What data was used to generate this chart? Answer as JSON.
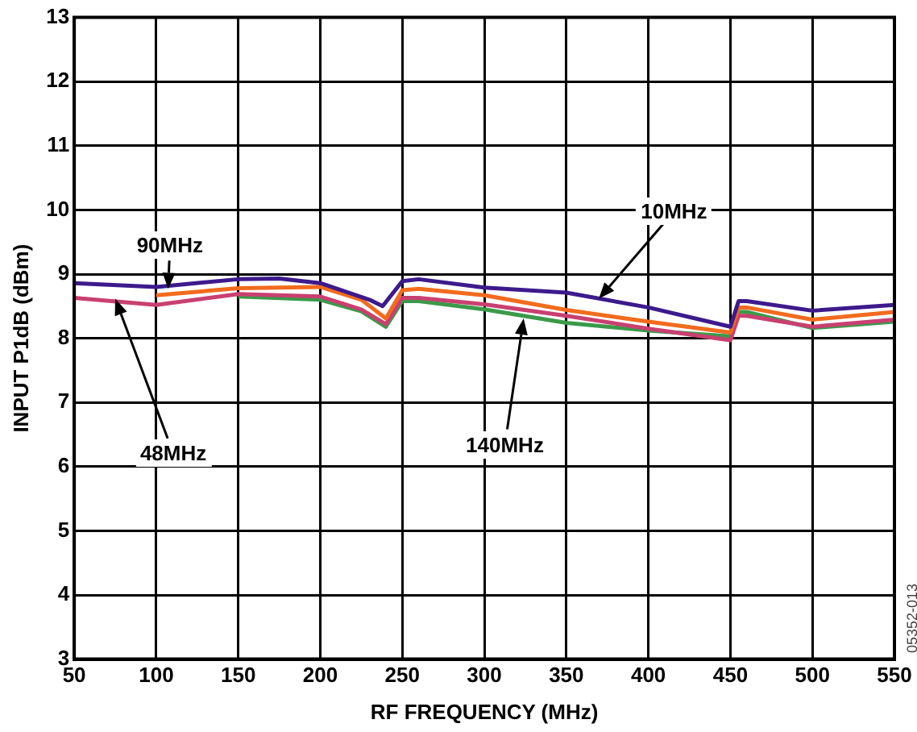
{
  "chart_data": {
    "type": "line",
    "xlabel": "RF FREQUENCY (MHz)",
    "ylabel": "INPUT P1dB (dBm)",
    "xlim": [
      50,
      550
    ],
    "xticks": [
      50,
      100,
      150,
      200,
      250,
      300,
      350,
      400,
      450,
      500,
      550
    ],
    "ylim": [
      3,
      13
    ],
    "yticks": [
      3,
      4,
      5,
      6,
      7,
      8,
      9,
      10,
      11,
      12,
      13
    ],
    "grid": true,
    "legend": false,
    "marker": "none",
    "line_style": "solid",
    "series": [
      {
        "color": "#3d1a8c",
        "x": [
          50,
          100,
          150,
          175,
          200,
          230,
          238,
          250,
          260,
          300,
          350,
          400,
          450,
          455,
          460,
          500,
          550
        ],
        "values": [
          8.86,
          8.8,
          8.92,
          8.93,
          8.86,
          8.6,
          8.5,
          8.89,
          8.92,
          8.79,
          8.71,
          8.48,
          8.18,
          8.58,
          8.58,
          8.43,
          8.52
        ]
      },
      {
        "color": "#f26b1d",
        "x": [
          100,
          150,
          200,
          225,
          240,
          250,
          260,
          300,
          350,
          400,
          450,
          455,
          460,
          500,
          550
        ],
        "values": [
          8.67,
          8.78,
          8.8,
          8.6,
          8.31,
          8.75,
          8.77,
          8.67,
          8.44,
          8.26,
          8.09,
          8.48,
          8.48,
          8.29,
          8.41
        ]
      },
      {
        "color": "#c94070",
        "x": [
          50,
          100,
          150,
          200,
          225,
          240,
          250,
          260,
          300,
          350,
          400,
          450,
          455,
          460,
          500,
          550
        ],
        "values": [
          8.63,
          8.52,
          8.69,
          8.65,
          8.45,
          8.22,
          8.63,
          8.63,
          8.53,
          8.35,
          8.15,
          7.97,
          8.35,
          8.35,
          8.18,
          8.29
        ]
      },
      {
        "color": "#3a9a4a",
        "x": [
          150,
          200,
          225,
          240,
          250,
          260,
          300,
          350,
          400,
          450,
          455,
          460,
          500,
          550
        ],
        "values": [
          8.65,
          8.6,
          8.42,
          8.18,
          8.58,
          8.58,
          8.45,
          8.24,
          8.12,
          8.03,
          8.41,
          8.41,
          8.16,
          8.26
        ]
      }
    ],
    "annotations": [
      "90MHz",
      "10MHz",
      "48MHz",
      "140MHz",
      "05352-013"
    ]
  }
}
